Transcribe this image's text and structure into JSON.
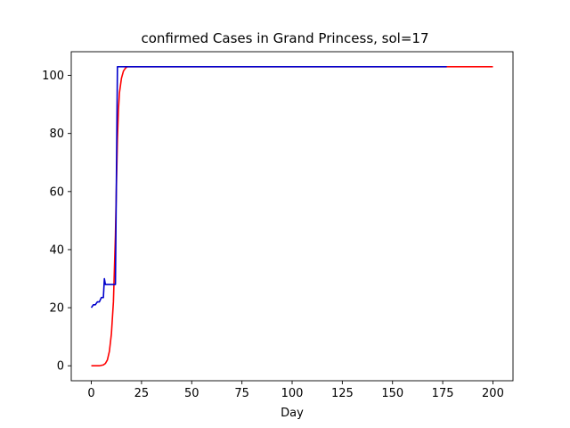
{
  "chart_data": {
    "type": "line",
    "title": "confirmed Cases in Grand Princess, sol=17",
    "xlabel": "Day",
    "ylabel": "",
    "xlim": [
      -10,
      210
    ],
    "ylim": [
      -5.15,
      108.15
    ],
    "xticks": [
      0,
      25,
      50,
      75,
      100,
      125,
      150,
      175,
      200
    ],
    "yticks": [
      0,
      20,
      40,
      60,
      80,
      100
    ],
    "xtick_labels": [
      "0",
      "25",
      "50",
      "75",
      "100",
      "125",
      "150",
      "175",
      "200"
    ],
    "ytick_labels": [
      "0",
      "20",
      "40",
      "60",
      "80",
      "100"
    ],
    "grid": false,
    "series": [
      {
        "color": "#ff0000",
        "x": [
          0,
          2,
          4,
          6,
          7,
          8,
          9,
          10,
          11,
          12,
          12.5,
          13,
          13.5,
          14,
          15,
          16,
          17,
          18,
          20,
          25,
          50,
          100,
          150,
          200
        ],
        "y": [
          0,
          0,
          0,
          0.3,
          0.8,
          2,
          5,
          11,
          22,
          45,
          62,
          78,
          88,
          94,
          99,
          101.5,
          102.5,
          103,
          103,
          103,
          103,
          103,
          103,
          103
        ]
      },
      {
        "color": "#0000cc",
        "x": [
          0,
          1,
          2,
          3,
          4,
          5,
          6,
          6.5,
          7,
          7.5,
          8,
          9,
          10,
          11,
          12,
          13,
          14,
          15,
          20,
          50,
          100,
          150,
          177
        ],
        "y": [
          20,
          21,
          21,
          22,
          22,
          23.5,
          23.5,
          30,
          28,
          28,
          28,
          28,
          28,
          28,
          28,
          103,
          103,
          103,
          103,
          103,
          103,
          103,
          103
        ]
      }
    ]
  }
}
